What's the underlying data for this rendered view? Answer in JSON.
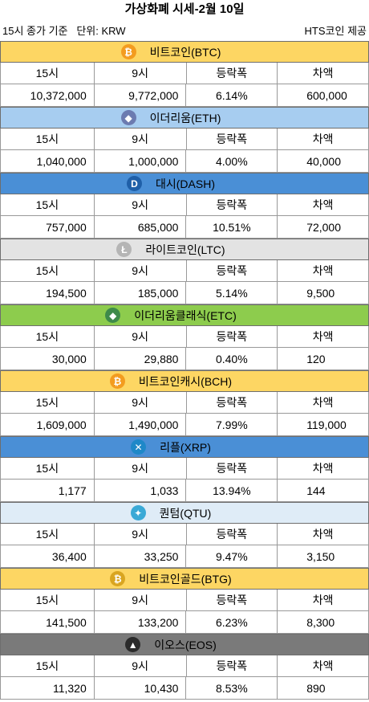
{
  "title": "가상화폐 시세-2월 10일",
  "subtitle_left": "15시 종가 기준   단위: KRW",
  "subtitle_right": "HTS코인 제공",
  "columns": [
    "15시",
    "9시",
    "등락폭",
    "차액"
  ],
  "coins": [
    {
      "name": "비트코인(BTC)",
      "icon": "bitcoin-icon",
      "glyph": "₿",
      "band_color": "#fdd663",
      "icon_color": "#f39c1f",
      "values": [
        "10,372,000",
        "9,772,000",
        "6.14%",
        "600,000"
      ]
    },
    {
      "name": "이더리움(ETH)",
      "icon": "ethereum-icon",
      "glyph": "◆",
      "band_color": "#a7cdf0",
      "icon_color": "#6c7bb0",
      "values": [
        "1,040,000",
        "1,000,000",
        "4.00%",
        "40,000"
      ]
    },
    {
      "name": "대시(DASH)",
      "icon": "dash-icon",
      "glyph": "D",
      "band_color": "#4a8fd6",
      "icon_color": "#1f5fa8",
      "values": [
        "757,000",
        "685,000",
        "10.51%",
        "72,000"
      ]
    },
    {
      "name": "라이트코인(LTC)",
      "icon": "litecoin-icon",
      "glyph": "Ł",
      "band_color": "#e3e3e3",
      "icon_color": "#b5b5b5",
      "values": [
        "194,500",
        "185,000",
        "5.14%",
        "9,500"
      ]
    },
    {
      "name": "이더리움클래식(ETC)",
      "icon": "ethereum-classic-icon",
      "glyph": "◆",
      "band_color": "#8dcc4d",
      "icon_color": "#3e8a4a",
      "values": [
        "30,000",
        "29,880",
        "0.40%",
        "120"
      ]
    },
    {
      "name": "비트코인캐시(BCH)",
      "icon": "bitcoin-cash-icon",
      "glyph": "₿",
      "band_color": "#fdd663",
      "icon_color": "#f39c1f",
      "values": [
        "1,609,000",
        "1,490,000",
        "7.99%",
        "119,000"
      ]
    },
    {
      "name": "리플(XRP)",
      "icon": "ripple-icon",
      "glyph": "✕",
      "band_color": "#4a8fd6",
      "icon_color": "#1e88c8",
      "values": [
        "1,177",
        "1,033",
        "13.94%",
        "144"
      ]
    },
    {
      "name": "퀀텀(QTU)",
      "icon": "qtum-icon",
      "glyph": "✦",
      "band_color": "#dfecf7",
      "icon_color": "#3aa9d6",
      "values": [
        "36,400",
        "33,250",
        "9.47%",
        "3,150"
      ]
    },
    {
      "name": "비트코인골드(BTG)",
      "icon": "bitcoin-gold-icon",
      "glyph": "₿",
      "band_color": "#fdd663",
      "icon_color": "#d9a520",
      "values": [
        "141,500",
        "133,200",
        "6.23%",
        "8,300"
      ]
    },
    {
      "name": "이오스(EOS)",
      "icon": "eos-icon",
      "glyph": "▲",
      "band_color": "#7a7a7a",
      "icon_color": "#2b2b2b",
      "values": [
        "11,320",
        "10,430",
        "8.53%",
        "890"
      ]
    }
  ]
}
